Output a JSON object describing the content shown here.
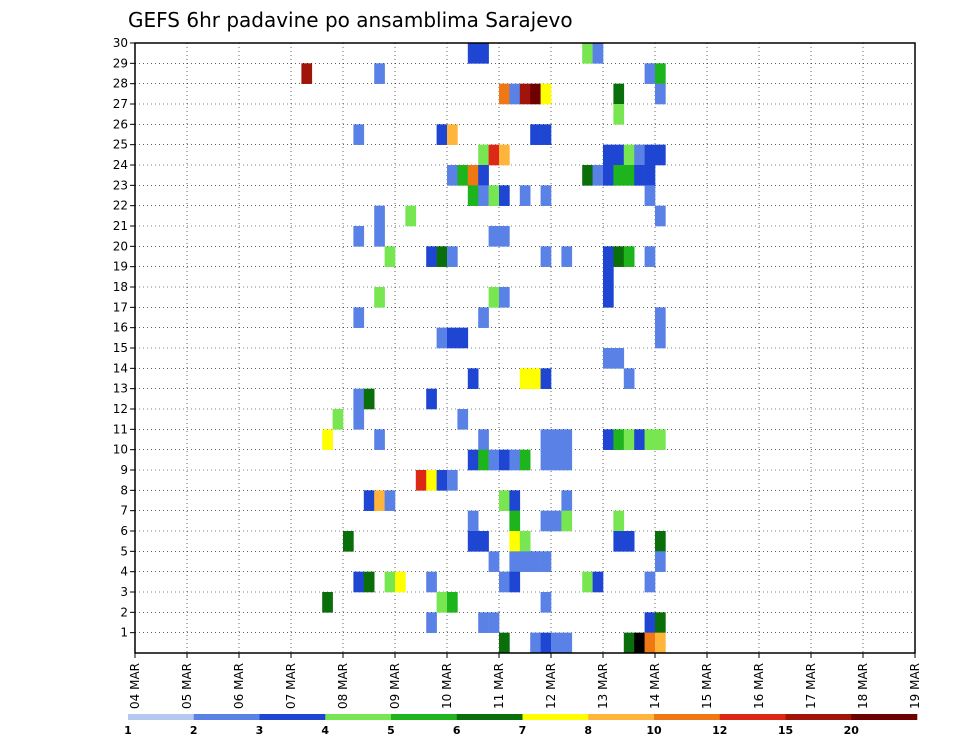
{
  "chart_data": {
    "type": "heatmap",
    "title": "GEFS 6hr padavine po ansamblima Sarajevo",
    "x_axis": {
      "labels": [
        "04 MAR",
        "05 MAR",
        "06 MAR",
        "07 MAR",
        "08 MAR",
        "09 MAR",
        "10 MAR",
        "11 MAR",
        "12 MAR",
        "13 MAR",
        "14 MAR",
        "15 MAR",
        "16 MAR",
        "17 MAR",
        "18 MAR",
        "19 MAR"
      ]
    },
    "y_axis": {
      "labels": [
        "1",
        "2",
        "3",
        "4",
        "5",
        "6",
        "7",
        "8",
        "9",
        "10",
        "11",
        "12",
        "13",
        "14",
        "15",
        "16",
        "17",
        "18",
        "19",
        "20",
        "21",
        "22",
        "23",
        "24",
        "25",
        "26",
        "27",
        "28",
        "29",
        "30"
      ],
      "range": [
        0,
        30
      ]
    },
    "grid": true,
    "legend": {
      "placement": "bottom",
      "labels": [
        "1",
        "2",
        "3",
        "4",
        "5",
        "6",
        "7",
        "8",
        "10",
        "12",
        "15",
        "20"
      ],
      "colors": [
        "#b4c8f0",
        "#5a82e6",
        "#1e46d2",
        "#78e650",
        "#1eb41e",
        "#0a6e0a",
        "#ffff00",
        "#ffb43c",
        "#f07814",
        "#dc2814",
        "#a0140a",
        "#6e0000"
      ]
    },
    "cells": [
      [
        7.2,
        28,
        10
      ],
      [
        7.6,
        10,
        6
      ],
      [
        7.6,
        2,
        5
      ],
      [
        7.8,
        11,
        3
      ],
      [
        8.0,
        5,
        5
      ],
      [
        8.2,
        25,
        1
      ],
      [
        8.2,
        20,
        1
      ],
      [
        8.2,
        16,
        1
      ],
      [
        8.2,
        12,
        1
      ],
      [
        8.2,
        11,
        1
      ],
      [
        8.2,
        3,
        2
      ],
      [
        8.4,
        12,
        5
      ],
      [
        8.4,
        7,
        2
      ],
      [
        8.4,
        3,
        5
      ],
      [
        8.6,
        28,
        1
      ],
      [
        8.6,
        21,
        1
      ],
      [
        8.6,
        20,
        1
      ],
      [
        8.6,
        17,
        3
      ],
      [
        8.6,
        10,
        1
      ],
      [
        8.6,
        7,
        7
      ],
      [
        8.8,
        19,
        3
      ],
      [
        8.8,
        7,
        1
      ],
      [
        8.8,
        3,
        3
      ],
      [
        9.0,
        3,
        6
      ],
      [
        9.2,
        21,
        3
      ],
      [
        9.4,
        8,
        9
      ],
      [
        9.6,
        19,
        2
      ],
      [
        9.6,
        12,
        2
      ],
      [
        9.6,
        8,
        6
      ],
      [
        9.6,
        3,
        1
      ],
      [
        9.6,
        1,
        1
      ],
      [
        9.8,
        25,
        2
      ],
      [
        9.8,
        19,
        5
      ],
      [
        9.8,
        15,
        1
      ],
      [
        9.8,
        8,
        2
      ],
      [
        9.8,
        2,
        3
      ],
      [
        10.0,
        25,
        7
      ],
      [
        10.0,
        23,
        1
      ],
      [
        10.0,
        19,
        1
      ],
      [
        10.0,
        15,
        2
      ],
      [
        10.0,
        8,
        1
      ],
      [
        10.0,
        2,
        4
      ],
      [
        10.2,
        23,
        4
      ],
      [
        10.2,
        15,
        2
      ],
      [
        10.2,
        11,
        1
      ],
      [
        10.4,
        29,
        2
      ],
      [
        10.4,
        23,
        8
      ],
      [
        10.4,
        22,
        4
      ],
      [
        10.4,
        13,
        2
      ],
      [
        10.4,
        9,
        2
      ],
      [
        10.4,
        6,
        1
      ],
      [
        10.4,
        5,
        2
      ],
      [
        10.6,
        29,
        2
      ],
      [
        10.6,
        24,
        3
      ],
      [
        10.6,
        23,
        2
      ],
      [
        10.6,
        22,
        1
      ],
      [
        10.6,
        16,
        1
      ],
      [
        10.6,
        10,
        1
      ],
      [
        10.6,
        9,
        4
      ],
      [
        10.6,
        5,
        2
      ],
      [
        10.6,
        1,
        1
      ],
      [
        10.8,
        24,
        9
      ],
      [
        10.8,
        22,
        3
      ],
      [
        10.8,
        20,
        1
      ],
      [
        10.8,
        17,
        3
      ],
      [
        10.8,
        9,
        1
      ],
      [
        10.8,
        4,
        1
      ],
      [
        10.8,
        1,
        1
      ],
      [
        11.0,
        27,
        8
      ],
      [
        11.0,
        24,
        7
      ],
      [
        11.0,
        22,
        2
      ],
      [
        11.0,
        20,
        1
      ],
      [
        11.0,
        17,
        1
      ],
      [
        11.0,
        9,
        2
      ],
      [
        11.0,
        7,
        3
      ],
      [
        11.0,
        3,
        1
      ],
      [
        11.0,
        0,
        5
      ],
      [
        11.2,
        27,
        1
      ],
      [
        11.2,
        9,
        1
      ],
      [
        11.2,
        7,
        2
      ],
      [
        11.2,
        6,
        4
      ],
      [
        11.2,
        5,
        6
      ],
      [
        11.2,
        4,
        1
      ],
      [
        11.2,
        3,
        2
      ],
      [
        11.4,
        27,
        10
      ],
      [
        11.4,
        22,
        1
      ],
      [
        11.4,
        13,
        6
      ],
      [
        11.4,
        9,
        4
      ],
      [
        11.4,
        5,
        3
      ],
      [
        11.4,
        4,
        1
      ],
      [
        11.6,
        27,
        11
      ],
      [
        11.6,
        25,
        2
      ],
      [
        11.6,
        13,
        6
      ],
      [
        11.6,
        4,
        1
      ],
      [
        11.6,
        0,
        1
      ],
      [
        11.8,
        27,
        6
      ],
      [
        11.8,
        25,
        2
      ],
      [
        11.8,
        22,
        1
      ],
      [
        11.8,
        19,
        1
      ],
      [
        11.8,
        13,
        2
      ],
      [
        11.8,
        10,
        1
      ],
      [
        11.8,
        9,
        1
      ],
      [
        11.8,
        6,
        1
      ],
      [
        11.8,
        4,
        1
      ],
      [
        11.8,
        2,
        1
      ],
      [
        11.8,
        0,
        2
      ],
      [
        12.0,
        10,
        1
      ],
      [
        12.0,
        9,
        1
      ],
      [
        12.0,
        6,
        1
      ],
      [
        12.0,
        0,
        1
      ],
      [
        12.2,
        19,
        1
      ],
      [
        12.2,
        10,
        1
      ],
      [
        12.2,
        9,
        1
      ],
      [
        12.2,
        7,
        1
      ],
      [
        12.2,
        6,
        3
      ],
      [
        12.2,
        0,
        1
      ],
      [
        12.6,
        29,
        3
      ],
      [
        12.6,
        23,
        5
      ],
      [
        12.6,
        3,
        3
      ],
      [
        12.8,
        29,
        1
      ],
      [
        12.8,
        23,
        1
      ],
      [
        12.8,
        3,
        2
      ],
      [
        13.0,
        24,
        2
      ],
      [
        13.0,
        23,
        2
      ],
      [
        13.0,
        19,
        2
      ],
      [
        13.0,
        18,
        2
      ],
      [
        13.0,
        17,
        2
      ],
      [
        13.0,
        14,
        1
      ],
      [
        13.0,
        10,
        2
      ],
      [
        13.2,
        27,
        5
      ],
      [
        13.2,
        26,
        3
      ],
      [
        13.2,
        24,
        2
      ],
      [
        13.2,
        23,
        4
      ],
      [
        13.2,
        19,
        5
      ],
      [
        13.2,
        14,
        1
      ],
      [
        13.2,
        10,
        4
      ],
      [
        13.2,
        6,
        3
      ],
      [
        13.2,
        5,
        2
      ],
      [
        13.4,
        24,
        3
      ],
      [
        13.4,
        23,
        4
      ],
      [
        13.4,
        19,
        4
      ],
      [
        13.4,
        13,
        1
      ],
      [
        13.4,
        10,
        3
      ],
      [
        13.4,
        5,
        2
      ],
      [
        13.4,
        0,
        5
      ],
      [
        13.6,
        24,
        1
      ],
      [
        13.6,
        23,
        2
      ],
      [
        13.6,
        10,
        2
      ],
      [
        13.6,
        0,
        12
      ],
      [
        13.8,
        28,
        1
      ],
      [
        13.8,
        24,
        2
      ],
      [
        13.8,
        23,
        2
      ],
      [
        13.8,
        22,
        1
      ],
      [
        13.8,
        19,
        1
      ],
      [
        13.8,
        10,
        3
      ],
      [
        13.8,
        3,
        1
      ],
      [
        13.8,
        1,
        2
      ],
      [
        13.8,
        0,
        8
      ],
      [
        14.0,
        28,
        4
      ],
      [
        14.0,
        27,
        1
      ],
      [
        14.0,
        24,
        2
      ],
      [
        14.0,
        21,
        1
      ],
      [
        14.0,
        16,
        1
      ],
      [
        14.0,
        15,
        1
      ],
      [
        14.0,
        10,
        3
      ],
      [
        14.0,
        5,
        5
      ],
      [
        14.0,
        4,
        1
      ],
      [
        14.0,
        1,
        5
      ],
      [
        14.0,
        0,
        7
      ]
    ]
  }
}
